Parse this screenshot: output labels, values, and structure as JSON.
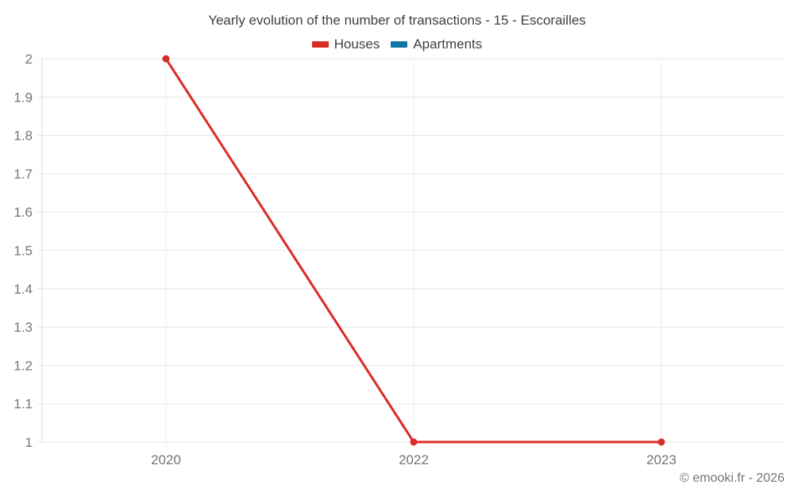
{
  "header": {
    "title": "Yearly evolution of the number of transactions - 15 - Escorailles"
  },
  "legend": {
    "items": [
      {
        "label": "Houses",
        "color": "#db2b27"
      },
      {
        "label": "Apartments",
        "color": "#0f76a8"
      }
    ]
  },
  "footer": {
    "copyright": "© emooki.fr - 2026"
  },
  "chart_data": {
    "type": "line",
    "title": "Yearly evolution of the number of transactions - 15 - Escorailles",
    "categories": [
      "2020",
      "2022",
      "2023"
    ],
    "series": [
      {
        "name": "Houses",
        "color": "#db2b27",
        "values": [
          2,
          1,
          1
        ]
      },
      {
        "name": "Apartments",
        "color": "#0f76a8",
        "values": [
          null,
          null,
          null
        ]
      }
    ],
    "xlabel": "",
    "ylabel": "",
    "ylim": [
      1,
      2
    ],
    "yticks": [
      "1",
      "1.1",
      "1.2",
      "1.3",
      "1.4",
      "1.5",
      "1.6",
      "1.7",
      "1.8",
      "1.9",
      "2"
    ],
    "grid": true,
    "legend_position": "top",
    "grid_color": "#e6e6e6",
    "vgrid_color": "#ededed",
    "axis_color": "#d9d9d9",
    "text_color": "#757575",
    "title_color": "#3c4043"
  }
}
